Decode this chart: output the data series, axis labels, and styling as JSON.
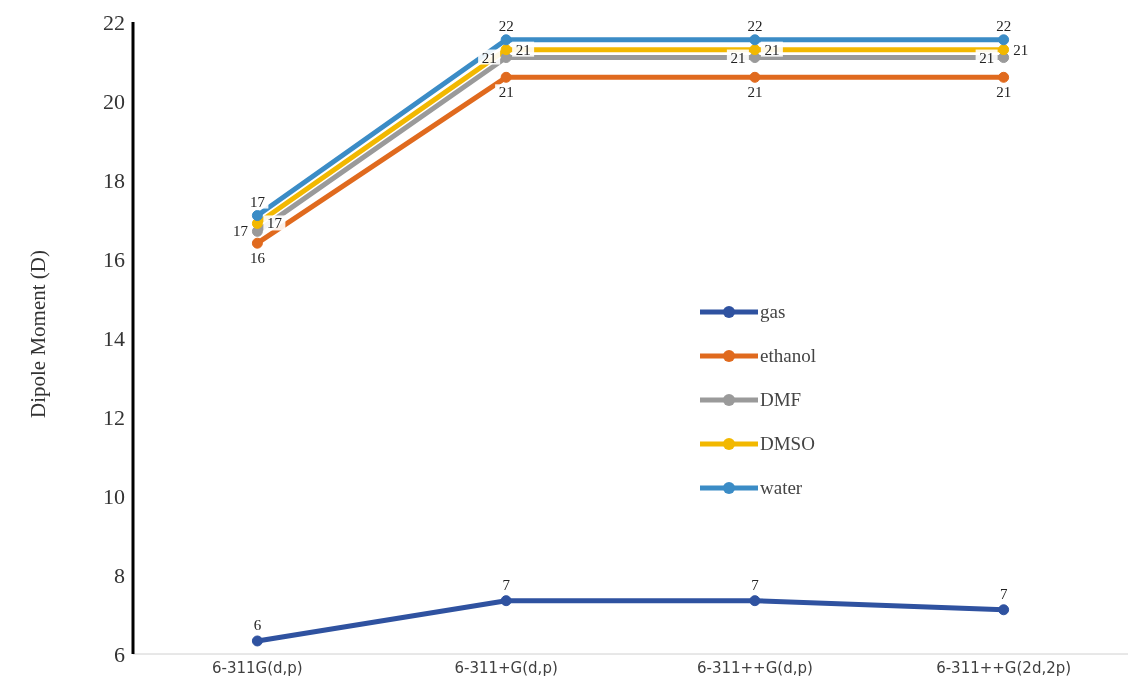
{
  "chart_data": {
    "type": "line",
    "ylabel": "Dipole Moment (D)",
    "categories": [
      "6-311G(d,p)",
      "6-311+G(d,p)",
      "6-311++G(d,p)",
      "6-311++G(2d,2p)"
    ],
    "series": [
      {
        "name": "gas",
        "color": "#2f52a0",
        "values": [
          6.33,
          7.35,
          7.35,
          7.12
        ],
        "value_labels": [
          "6",
          "7",
          "7",
          "7"
        ]
      },
      {
        "name": "ethanol",
        "color": "#e06a1e",
        "values": [
          16.4,
          20.6,
          20.6,
          20.6
        ],
        "value_labels": [
          "16",
          "21",
          "21",
          "21"
        ]
      },
      {
        "name": "DMF",
        "color": "#9a9a9a",
        "values": [
          16.7,
          21.1,
          21.1,
          21.1
        ],
        "value_labels": [
          "17",
          "21",
          "21",
          "21"
        ]
      },
      {
        "name": "DMSO",
        "color": "#f2b800",
        "values": [
          16.9,
          21.3,
          21.3,
          21.3
        ],
        "value_labels": [
          "17",
          "21",
          "21",
          "21"
        ]
      },
      {
        "name": "water",
        "color": "#3b8cc6",
        "values": [
          17.1,
          21.55,
          21.55,
          21.55
        ],
        "value_labels": [
          "17",
          "22",
          "22",
          "22"
        ]
      }
    ],
    "ylim": [
      6,
      22
    ],
    "yticks": [
      6,
      8,
      10,
      12,
      14,
      16,
      18,
      20,
      22
    ],
    "grid": false,
    "legend": "right",
    "marker": "circle",
    "line_style": "solid"
  }
}
